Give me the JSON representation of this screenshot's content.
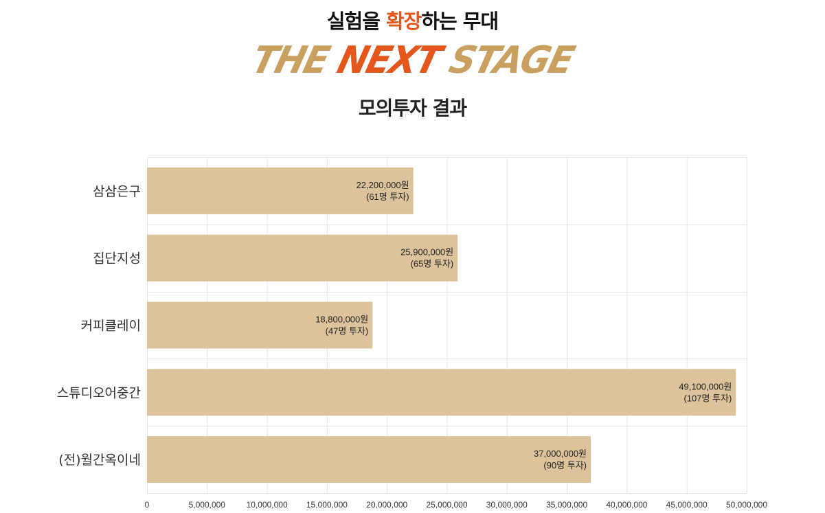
{
  "header": {
    "title_pre": "실험을 ",
    "title_accent": "확장",
    "title_post": "하는 무대",
    "stage_part1": "THE ",
    "stage_part2": "NEXT",
    "stage_part3": " STAGE",
    "subtitle": "모의투자 결과"
  },
  "colors": {
    "bar": "#dcc39c",
    "accent_orange": "#e4561b",
    "accent_gold": "#c9a05f",
    "grid": "#e6e6e6"
  },
  "chart_data": {
    "type": "bar",
    "orientation": "horizontal",
    "title": "",
    "xlabel": "",
    "ylabel": "",
    "categories": [
      "삼삼은구",
      "집단지성",
      "커피클레이",
      "스튜디오어중간",
      "(전)월간옥이네"
    ],
    "values": [
      22200000,
      25900000,
      18800000,
      49100000,
      37000000
    ],
    "data_labels": [
      [
        "22,200,000원",
        "(61명 투자)"
      ],
      [
        "25,900,000원",
        "(65명 투자)"
      ],
      [
        "18,800,000원",
        "(47명 투자)"
      ],
      [
        "49,100,000원",
        "(107명 투자)"
      ],
      [
        "37,000,000원",
        "(90명 투자)"
      ]
    ],
    "xlim": [
      0,
      50000000
    ],
    "x_ticks": [
      0,
      5000000,
      10000000,
      15000000,
      20000000,
      25000000,
      30000000,
      35000000,
      40000000,
      45000000,
      50000000
    ],
    "x_tick_labels": [
      "0",
      "5,000,000",
      "10,000,000",
      "15,000,000",
      "20,000,000",
      "25,000,000",
      "30,000,000",
      "35,000,000",
      "40,000,000",
      "45,000,000",
      "50,000,000"
    ],
    "grid": true,
    "legend": "none"
  }
}
